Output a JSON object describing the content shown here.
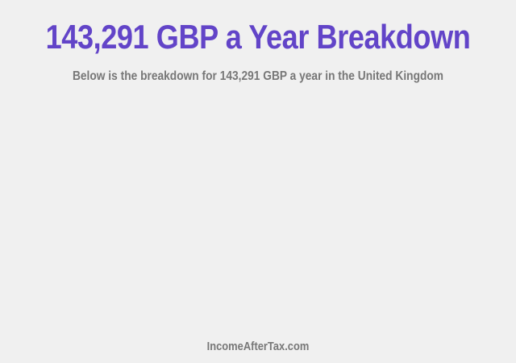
{
  "header": {
    "title": "143,291 GBP a Year Breakdown",
    "subtitle": "Below is the breakdown for 143,291 GBP a year in the United Kingdom"
  },
  "footer": {
    "site": "IncomeAfterTax.com"
  }
}
